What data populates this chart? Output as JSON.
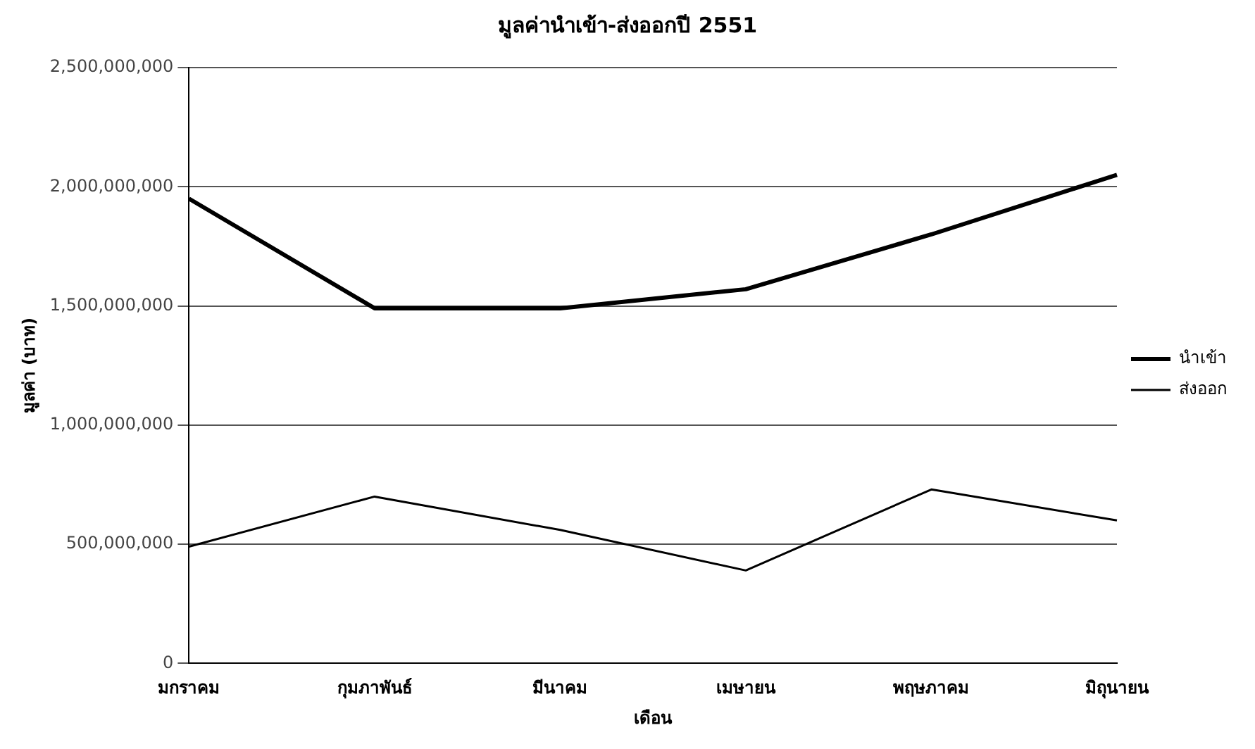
{
  "chart_data": {
    "type": "line",
    "title": "มูลค่านำเข้า-ส่งออกปี 2551",
    "xlabel": "เดือน",
    "ylabel": "มูลค่า (บาท)",
    "categories": [
      "มกราคม",
      "กุมภาพันธ์",
      "มีนาคม",
      "เมษายน",
      "พฤษภาคม",
      "มิถุนายน"
    ],
    "series": [
      {
        "name": "นำเข้า",
        "color": "#000000",
        "values": [
          1950000000,
          1490000000,
          1490000000,
          1570000000,
          1800000000,
          2050000000
        ]
      },
      {
        "name": "ส่งออก",
        "color": "#000000",
        "values": [
          490000000,
          700000000,
          560000000,
          390000000,
          730000000,
          600000000
        ]
      }
    ],
    "ylim": [
      0,
      2500000000
    ],
    "yticks": [
      {
        "value": 0,
        "label": "0"
      },
      {
        "value": 500000000,
        "label": "500,000,000"
      },
      {
        "value": 1000000000,
        "label": "1,000,000,000"
      },
      {
        "value": 1500000000,
        "label": "1,500,000,000"
      },
      {
        "value": 2000000000,
        "label": "2,000,000,000"
      },
      {
        "value": 2500000000,
        "label": "2,500,000,000"
      }
    ],
    "grid": "y",
    "legend": "right",
    "marker": "none",
    "line_style": "solid"
  }
}
